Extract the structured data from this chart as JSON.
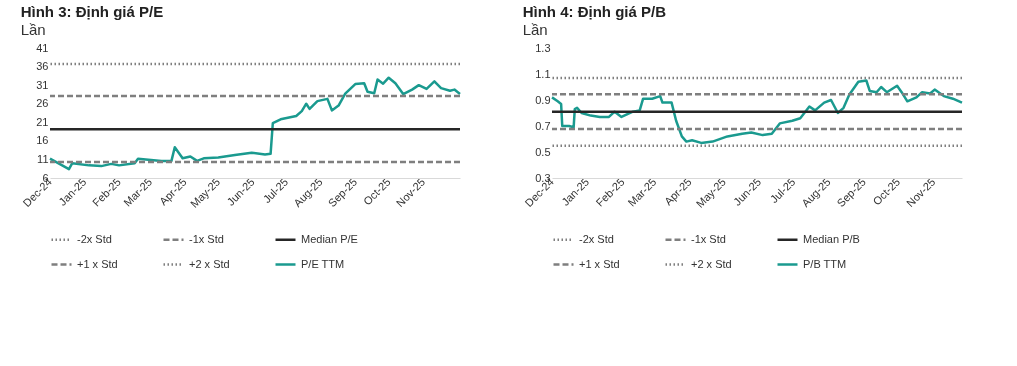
{
  "chart_data": [
    {
      "type": "line",
      "title": "Hình 3: Định giá P/E",
      "subtitle": "Lần",
      "grid": false,
      "legend": "bottom",
      "line_style": "solid",
      "marker": "none",
      "xlim": [
        "2024-12-01",
        "2025-12-04"
      ],
      "xticks": [
        {
          "value": "2024-12-01",
          "label": "Dec-24"
        },
        {
          "value": "2025-01-01",
          "label": "Jan-25"
        },
        {
          "value": "2025-02-01",
          "label": "Feb-25"
        },
        {
          "value": "2025-03-01",
          "label": "Mar-25"
        },
        {
          "value": "2025-04-01",
          "label": "Apr-25"
        },
        {
          "value": "2025-05-01",
          "label": "May-25"
        },
        {
          "value": "2025-06-01",
          "label": "Jun-25"
        },
        {
          "value": "2025-07-01",
          "label": "Jul-25"
        },
        {
          "value": "2025-08-01",
          "label": "Aug-25"
        },
        {
          "value": "2025-09-01",
          "label": "Sep-25"
        },
        {
          "value": "2025-10-01",
          "label": "Oct-25"
        },
        {
          "value": "2025-11-01",
          "label": "Nov-25"
        }
      ],
      "ylim": [
        6,
        41
      ],
      "yticks": [
        6,
        11,
        16,
        21,
        26,
        31,
        36,
        41
      ],
      "ref_lines": [
        {
          "axis": "y",
          "value": null,
          "label": "-2x Std",
          "color": "#7f7f7f",
          "line_style": "dotted"
        },
        {
          "axis": "y",
          "value": 10.3,
          "label": "-1x Std",
          "color": "#7f7f7f",
          "line_style": "dashed"
        },
        {
          "axis": "y",
          "value": 19.1,
          "label": "Median P/E",
          "color": "#262626",
          "line_style": "solid"
        },
        {
          "axis": "y",
          "value": 28.1,
          "label": "+1 x Std",
          "color": "#7f7f7f",
          "line_style": "dashed"
        },
        {
          "axis": "y",
          "value": 36.7,
          "label": "+2 x Std",
          "color": "#7f7f7f",
          "line_style": "dotted"
        }
      ],
      "series": [
        {
          "name": "P/E TTM",
          "color": "#1a9a8f",
          "x": [
            "2024-12-01",
            "2024-12-18",
            "2024-12-21",
            "2025-01-05",
            "2025-01-16",
            "2025-01-25",
            "2025-02-01",
            "2025-02-15",
            "2025-02-18",
            "2025-03-11",
            "2025-03-20",
            "2025-03-23",
            "2025-03-30",
            "2025-04-06",
            "2025-04-12",
            "2025-04-18",
            "2025-05-01",
            "2025-05-16",
            "2025-05-31",
            "2025-06-12",
            "2025-06-17",
            "2025-06-19",
            "2025-06-26",
            "2025-07-10",
            "2025-07-15",
            "2025-07-19",
            "2025-07-22",
            "2025-07-29",
            "2025-08-07",
            "2025-08-11",
            "2025-08-17",
            "2025-08-23",
            "2025-09-01",
            "2025-09-09",
            "2025-09-12",
            "2025-09-18",
            "2025-09-21",
            "2025-09-26",
            "2025-10-01",
            "2025-10-07",
            "2025-10-14",
            "2025-10-22",
            "2025-10-28",
            "2025-11-04",
            "2025-11-11",
            "2025-11-17",
            "2025-11-25",
            "2025-11-29",
            "2025-12-04"
          ],
          "values": [
            11.2,
            8.4,
            10.0,
            9.4,
            9.2,
            9.8,
            9.4,
            10.0,
            11.2,
            10.6,
            10.6,
            14.3,
            11.3,
            11.8,
            10.6,
            11.3,
            11.5,
            12.2,
            12.8,
            12.3,
            12.5,
            20.8,
            21.8,
            22.7,
            24.0,
            26.0,
            24.6,
            26.7,
            27.3,
            24.2,
            25.5,
            28.7,
            31.3,
            31.5,
            29.2,
            28.8,
            32.5,
            31.4,
            33.0,
            31.5,
            28.6,
            29.8,
            31.0,
            30.0,
            32.0,
            30.2,
            29.5,
            29.8,
            28.6
          ]
        }
      ]
    },
    {
      "type": "line",
      "title": "Hình 4: Định giá P/B",
      "subtitle": "Lần",
      "grid": false,
      "legend": "bottom",
      "line_style": "solid",
      "marker": "none",
      "xlim": [
        "2024-12-01",
        "2025-11-26"
      ],
      "xticks": [
        {
          "value": "2024-12-01",
          "label": "Dec-24"
        },
        {
          "value": "2025-01-01",
          "label": "Jan-25"
        },
        {
          "value": "2025-02-01",
          "label": "Feb-25"
        },
        {
          "value": "2025-03-01",
          "label": "Mar-25"
        },
        {
          "value": "2025-04-01",
          "label": "Apr-25"
        },
        {
          "value": "2025-05-01",
          "label": "May-25"
        },
        {
          "value": "2025-06-01",
          "label": "Jun-25"
        },
        {
          "value": "2025-07-01",
          "label": "Jul-25"
        },
        {
          "value": "2025-08-01",
          "label": "Aug-25"
        },
        {
          "value": "2025-09-01",
          "label": "Sep-25"
        },
        {
          "value": "2025-10-01",
          "label": "Oct-25"
        },
        {
          "value": "2025-11-01",
          "label": "Nov-25"
        }
      ],
      "ylim": [
        0.3,
        1.3
      ],
      "yticks": [
        0.3,
        0.5,
        0.7,
        0.9,
        1.1,
        1.3
      ],
      "ref_lines": [
        {
          "axis": "y",
          "value": 0.548,
          "label": "-2x Std",
          "color": "#7f7f7f",
          "line_style": "dotted"
        },
        {
          "axis": "y",
          "value": 0.677,
          "label": "-1x Std",
          "color": "#7f7f7f",
          "line_style": "dashed"
        },
        {
          "axis": "y",
          "value": 0.81,
          "label": "Median P/B",
          "color": "#262626",
          "line_style": "solid"
        },
        {
          "axis": "y",
          "value": 0.944,
          "label": "+1 x Std",
          "color": "#7f7f7f",
          "line_style": "dashed"
        },
        {
          "axis": "y",
          "value": 1.07,
          "label": "+2 x Std",
          "color": "#7f7f7f",
          "line_style": "dotted"
        }
      ],
      "series": [
        {
          "name": "P/B TTM",
          "color": "#1a9a8f",
          "x": [
            "2024-12-01",
            "2024-12-06",
            "2024-12-09",
            "2024-12-10",
            "2024-12-16",
            "2024-12-20",
            "2024-12-21",
            "2024-12-23",
            "2024-12-27",
            "2025-01-04",
            "2025-01-12",
            "2025-01-20",
            "2025-01-25",
            "2025-01-31",
            "2025-02-10",
            "2025-02-16",
            "2025-02-19",
            "2025-02-27",
            "2025-03-06",
            "2025-03-08",
            "2025-03-16",
            "2025-03-20",
            "2025-03-25",
            "2025-03-29",
            "2025-04-03",
            "2025-04-11",
            "2025-04-21",
            "2025-05-04",
            "2025-05-17",
            "2025-05-25",
            "2025-06-04",
            "2025-06-12",
            "2025-06-19",
            "2025-06-30",
            "2025-07-07",
            "2025-07-15",
            "2025-07-20",
            "2025-07-28",
            "2025-08-03",
            "2025-08-09",
            "2025-08-14",
            "2025-08-19",
            "2025-08-27",
            "2025-09-03",
            "2025-09-06",
            "2025-09-12",
            "2025-09-16",
            "2025-09-21",
            "2025-09-30",
            "2025-10-04",
            "2025-10-09",
            "2025-10-17",
            "2025-10-22",
            "2025-10-29",
            "2025-11-02",
            "2025-11-10",
            "2025-11-18",
            "2025-11-26"
          ],
          "values": [
            0.92,
            0.89,
            0.87,
            0.7,
            0.7,
            0.69,
            0.83,
            0.84,
            0.8,
            0.78,
            0.77,
            0.77,
            0.81,
            0.77,
            0.81,
            0.82,
            0.91,
            0.91,
            0.93,
            0.88,
            0.88,
            0.74,
            0.62,
            0.58,
            0.59,
            0.57,
            0.58,
            0.62,
            0.64,
            0.65,
            0.63,
            0.64,
            0.72,
            0.74,
            0.76,
            0.85,
            0.82,
            0.88,
            0.9,
            0.8,
            0.84,
            0.94,
            1.04,
            1.05,
            0.97,
            0.96,
            1.0,
            0.96,
            1.01,
            0.96,
            0.89,
            0.92,
            0.96,
            0.95,
            0.98,
            0.93,
            0.91,
            0.88
          ]
        }
      ]
    }
  ]
}
